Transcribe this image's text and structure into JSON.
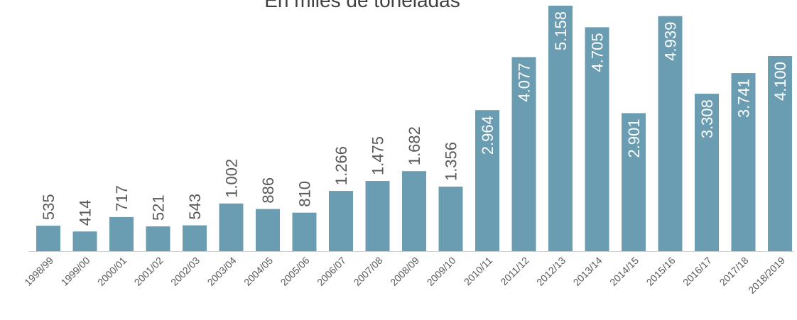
{
  "chart_data": {
    "type": "bar",
    "title": "En miles de toneladas",
    "categories": [
      "1998/99",
      "1999/00",
      "2000/01",
      "2001/02",
      "2002/03",
      "2003/04",
      "2004/05",
      "2005/06",
      "2006/07",
      "2007/08",
      "2008/09",
      "2009/10",
      "2010/11",
      "2011/12",
      "2012/13",
      "2013/14",
      "2014/15",
      "2015/16",
      "2016/17",
      "2017/18",
      "2018/2019"
    ],
    "values": [
      535,
      414,
      717,
      521,
      543,
      1002,
      886,
      810,
      1266,
      1475,
      1682,
      1356,
      2964,
      4077,
      5158,
      4705,
      2901,
      4939,
      3308,
      3741,
      4100
    ],
    "value_labels": [
      "535",
      "414",
      "717",
      "521",
      "543",
      "1.002",
      "886",
      "810",
      "1.266",
      "1.475",
      "1.682",
      "1.356",
      "2.964",
      "4.077",
      "5.158",
      "4.705",
      "2.901",
      "4.939",
      "3.308",
      "3.741",
      "4.100"
    ],
    "color": "#6b9db2"
  }
}
